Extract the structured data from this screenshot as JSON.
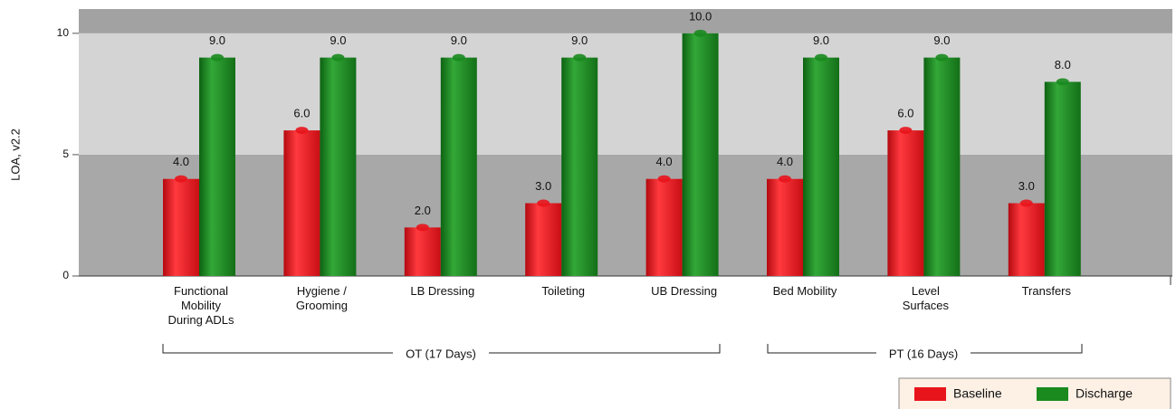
{
  "chart_data": {
    "type": "bar",
    "y_axis_label": "LOA, v2.2",
    "categories": [
      "Functional Mobility During ADLs",
      "Hygiene / Grooming",
      "LB Dressing",
      "Toileting",
      "UB Dressing",
      "Bed Mobility",
      "Level Surfaces",
      "Transfers"
    ],
    "series": [
      {
        "name": "Baseline",
        "color": "#e8141c",
        "values": [
          4,
          6,
          2,
          3,
          4,
          4,
          6,
          3
        ],
        "value_labels": [
          "4.0",
          "6.0",
          "2.0",
          "3.0",
          "4.0",
          "4.0",
          "6.0",
          "3.0"
        ]
      },
      {
        "name": "Discharge",
        "color": "#1a8a1f",
        "values": [
          9,
          9,
          9,
          9,
          10,
          9,
          9,
          8
        ],
        "value_labels": [
          "9.0",
          "9.0",
          "9.0",
          "9.0",
          "10.0",
          "9.0",
          "9.0",
          "8.0"
        ]
      }
    ],
    "groups": [
      "OT (17 Days)",
      "PT (16 Days)"
    ],
    "ylim": [
      0,
      11
    ],
    "yticks": [
      0,
      5,
      10
    ],
    "legend": "bottom-right"
  }
}
